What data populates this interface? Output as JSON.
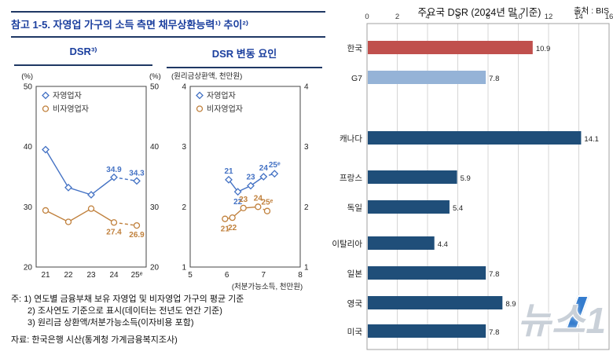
{
  "page": {
    "left": {
      "title": "참고 1-5. 자영업 가구의 소득 측면 채무상환능력¹⁾ 추이²⁾",
      "panel1_header": "DSR³⁾",
      "panel2_header": "DSR 변동 요인",
      "notes": [
        "주: 1) 연도별 금융부채 보유 자영업 및 비자영업 가구의 평균 기준",
        "2) 조사연도 기준으로 표시(데이터는 전년도 연간 기준)",
        "3) 원리금 상환액/처분가능소득(이자비용 포함)"
      ],
      "source": "자료: 한국은행 시산(통계청 가계금융복지조사)"
    },
    "right": {
      "title": "주요국 DSR (2024년 말 기준)",
      "source": "출처 : BIS"
    },
    "watermark": "뉴스1"
  },
  "chart_data": [
    {
      "type": "line",
      "title": "DSR",
      "unit": "(%)",
      "categories": [
        "21",
        "22",
        "23",
        "24",
        "25ᵉ"
      ],
      "ylim": [
        20,
        50
      ],
      "yticks": [
        20,
        30,
        40,
        50
      ],
      "forecast_from_index": 3,
      "legend_position": "top-left",
      "series": [
        {
          "name": "자영업자",
          "marker": "diamond",
          "color": "#4472C4",
          "values": [
            39.5,
            33.2,
            32.0,
            34.9,
            34.3
          ],
          "labels": [
            {
              "index": 3,
              "text": "34.9",
              "pos": "above"
            },
            {
              "index": 4,
              "text": "34.3",
              "pos": "above"
            }
          ]
        },
        {
          "name": "비자영업자",
          "marker": "circle",
          "color": "#C0803C",
          "values": [
            29.4,
            27.5,
            29.7,
            27.4,
            26.9
          ],
          "labels": [
            {
              "index": 3,
              "text": "27.4",
              "pos": "below"
            },
            {
              "index": 4,
              "text": "26.9",
              "pos": "below"
            }
          ]
        }
      ]
    },
    {
      "type": "scatter",
      "title": "DSR 변동 요인",
      "unit": "(원리금상환액, 천만원)",
      "xlabel": "(처분가능소득, 천만원)",
      "xlim": [
        5,
        8
      ],
      "xticks": [
        5,
        6,
        7,
        8
      ],
      "ylim": [
        1,
        4
      ],
      "yticks": [
        1,
        2,
        3,
        4
      ],
      "forecast_from_index": 3,
      "legend_position": "top-left",
      "series": [
        {
          "name": "자영업자",
          "marker": "diamond",
          "color": "#4472C4",
          "points": [
            {
              "x": 6.05,
              "y": 2.45,
              "label": "21",
              "pos": "above"
            },
            {
              "x": 6.3,
              "y": 2.25,
              "label": "22",
              "pos": "below"
            },
            {
              "x": 6.65,
              "y": 2.35,
              "label": "23",
              "pos": "above"
            },
            {
              "x": 7.0,
              "y": 2.5,
              "label": "24",
              "pos": "above"
            },
            {
              "x": 7.3,
              "y": 2.55,
              "label": "25ᵉ",
              "pos": "above"
            }
          ]
        },
        {
          "name": "비자영업자",
          "marker": "circle",
          "color": "#C0803C",
          "points": [
            {
              "x": 5.95,
              "y": 1.8,
              "label": "21",
              "pos": "below"
            },
            {
              "x": 6.15,
              "y": 1.82,
              "label": "22",
              "pos": "below"
            },
            {
              "x": 6.45,
              "y": 1.98,
              "label": "23",
              "pos": "above"
            },
            {
              "x": 6.85,
              "y": 2.0,
              "label": "24",
              "pos": "above"
            },
            {
              "x": 7.1,
              "y": 1.93,
              "label": "25ᵉ",
              "pos": "above"
            }
          ]
        }
      ]
    },
    {
      "type": "bar",
      "orientation": "horizontal",
      "title": "주요국 DSR (2024년 말 기준)",
      "source": "출처 : BIS",
      "categories": [
        "한국",
        "G7",
        "캐나다",
        "프랑스",
        "독일",
        "이탈리아",
        "일본",
        "영국",
        "미국"
      ],
      "values": [
        10.9,
        7.8,
        14.1,
        5.9,
        5.4,
        4.4,
        7.8,
        8.9,
        7.8
      ],
      "colors": [
        "#C0504D",
        "#95B3D7",
        "#1F4E79",
        "#1F4E79",
        "#1F4E79",
        "#1F4E79",
        "#1F4E79",
        "#1F4E79",
        "#1F4E79"
      ],
      "xlim": [
        0,
        16
      ],
      "xticks": [
        0,
        2,
        4,
        6,
        8,
        10,
        12,
        14,
        16
      ],
      "group_gap_after_index": 1,
      "grid": true,
      "value_labels": true
    }
  ]
}
